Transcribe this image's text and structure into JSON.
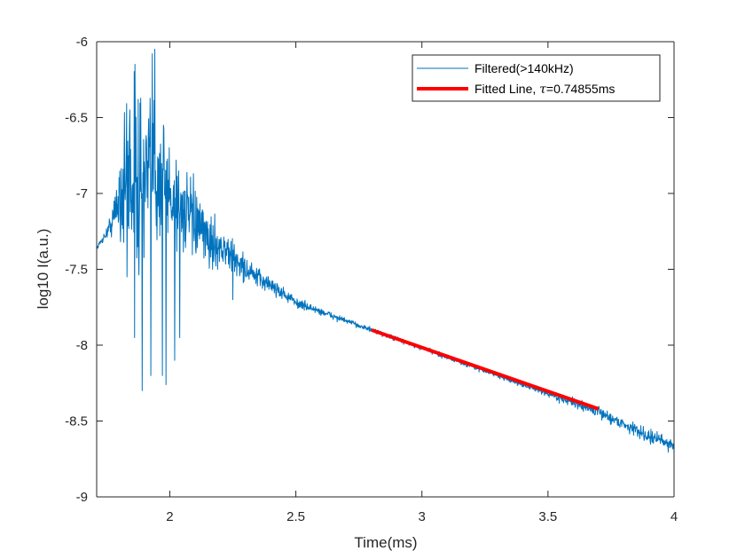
{
  "chart_data": {
    "type": "line",
    "title": "",
    "xlabel": "Time(ms)",
    "ylabel": "log10 I(a.u.)",
    "xlim": [
      1.71,
      4.0
    ],
    "ylim": [
      -9,
      -6
    ],
    "x_ticks": [
      2,
      2.5,
      3,
      3.5,
      4
    ],
    "x_tick_labels": [
      "2",
      "2.5",
      "3",
      "3.5",
      "4"
    ],
    "y_ticks": [
      -6,
      -6.5,
      -7,
      -7.5,
      -8,
      -8.5,
      -9
    ],
    "y_tick_labels": [
      "-6",
      "-6.5",
      "-7",
      "-7.5",
      "-8",
      "-8.5",
      "-9"
    ],
    "grid": false,
    "legend_position": "top-right",
    "series": [
      {
        "name": "Filtered(>140kHz)",
        "color": "#0072BD",
        "style": "thin-noisy",
        "x": [
          1.71,
          1.75,
          1.78,
          1.8,
          1.82,
          1.84,
          1.86,
          1.88,
          1.9,
          1.92,
          1.94,
          1.96,
          1.98,
          2.0,
          2.05,
          2.1,
          2.15,
          2.2,
          2.25,
          2.3,
          2.35,
          2.4,
          2.45,
          2.5,
          2.55,
          2.6,
          2.65,
          2.7,
          2.75,
          2.8,
          2.9,
          3.0,
          3.1,
          3.2,
          3.3,
          3.4,
          3.5,
          3.6,
          3.7,
          3.8,
          3.9,
          4.0
        ],
        "y": [
          -7.36,
          -7.26,
          -7.15,
          -7.0,
          -6.95,
          -6.85,
          -6.85,
          -6.95,
          -6.95,
          -6.9,
          -6.8,
          -6.9,
          -6.95,
          -7.0,
          -7.1,
          -7.2,
          -7.3,
          -7.35,
          -7.42,
          -7.5,
          -7.56,
          -7.6,
          -7.66,
          -7.72,
          -7.75,
          -7.78,
          -7.81,
          -7.84,
          -7.87,
          -7.9,
          -7.96,
          -8.02,
          -8.08,
          -8.14,
          -8.2,
          -8.26,
          -8.32,
          -8.38,
          -8.44,
          -8.52,
          -8.6,
          -8.66
        ],
        "spread": [
          0.01,
          0.03,
          0.12,
          0.3,
          0.45,
          0.55,
          0.6,
          0.55,
          0.5,
          0.5,
          0.5,
          0.45,
          0.4,
          0.35,
          0.25,
          0.2,
          0.15,
          0.12,
          0.1,
          0.08,
          0.06,
          0.05,
          0.04,
          0.03,
          0.025,
          0.02,
          0.02,
          0.015,
          0.015,
          0.015,
          0.015,
          0.015,
          0.015,
          0.015,
          0.015,
          0.015,
          0.02,
          0.025,
          0.03,
          0.035,
          0.04,
          0.04
        ],
        "extremes": [
          {
            "x": 1.94,
            "y": -6.05
          },
          {
            "x": 1.93,
            "y": -6.08
          },
          {
            "x": 1.875,
            "y": -6.38
          },
          {
            "x": 1.84,
            "y": -6.55
          },
          {
            "x": 1.975,
            "y": -6.55
          },
          {
            "x": 1.89,
            "y": -8.3
          },
          {
            "x": 1.925,
            "y": -8.2
          },
          {
            "x": 1.985,
            "y": -8.26
          },
          {
            "x": 1.97,
            "y": -8.2
          },
          {
            "x": 1.86,
            "y": -7.95
          },
          {
            "x": 1.83,
            "y": -7.55
          },
          {
            "x": 2.02,
            "y": -8.1
          },
          {
            "x": 2.04,
            "y": -7.95
          },
          {
            "x": 2.17,
            "y": -7.5
          },
          {
            "x": 2.25,
            "y": -7.7
          }
        ]
      },
      {
        "name": "Fitted Line, τ=0.74855ms",
        "name_prefix": "Fitted Line, ",
        "name_symbol": "τ",
        "name_suffix": "=0.74855ms",
        "color": "#FF0000",
        "style": "thick",
        "x": [
          2.8,
          3.7
        ],
        "y": [
          -7.9,
          -8.42
        ]
      }
    ]
  }
}
